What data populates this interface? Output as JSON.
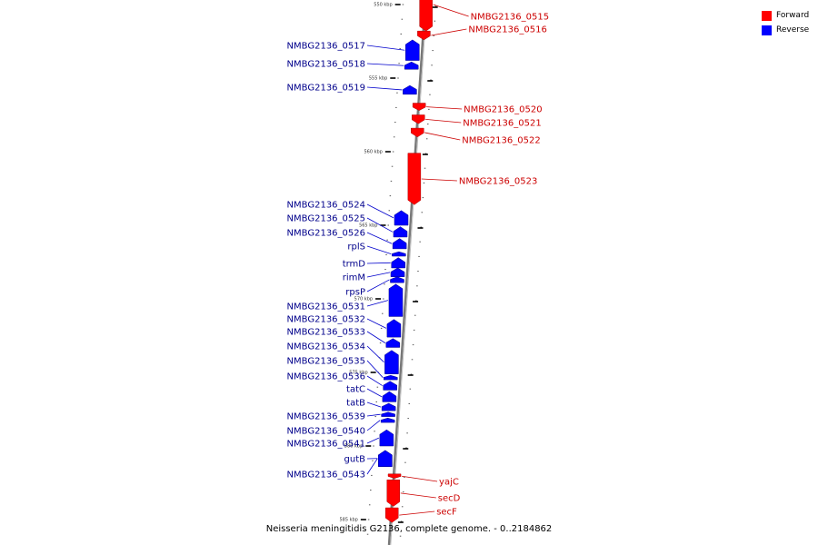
{
  "caption": "Neisseria meningitidis G2136, complete genome. - 0..2184862",
  "legend": [
    {
      "label": "Forward",
      "color": "#ff0000"
    },
    {
      "label": "Reverse",
      "color": "#0000ff"
    }
  ],
  "colors": {
    "forward": "#ff0000",
    "reverse": "#0000ff",
    "forward_label": "#cc0000",
    "reverse_label": "#00008b",
    "axis": "#888888"
  },
  "kbp_ticks": [
    {
      "kbp": 550,
      "label": "550 kbp"
    },
    {
      "kbp": 555,
      "label": "555 kbp"
    },
    {
      "kbp": 560,
      "label": "560 kbp"
    },
    {
      "kbp": 565,
      "label": "565 kbp"
    },
    {
      "kbp": 570,
      "label": "570 kbp"
    },
    {
      "kbp": 575,
      "label": "575 kbp"
    },
    {
      "kbp": 580,
      "label": "580 kbp"
    },
    {
      "kbp": 585,
      "label": "585 kbp"
    }
  ],
  "forward_genes": [
    {
      "name": "NMBG2136_0515",
      "start": 548.2,
      "end": 551.8
    },
    {
      "name": "NMBG2136_0516",
      "start": 551.8,
      "end": 552.4
    },
    {
      "name": "NMBG2136_0520",
      "start": 556.7,
      "end": 557.2
    },
    {
      "name": "NMBG2136_0521",
      "start": 557.5,
      "end": 558.1
    },
    {
      "name": "NMBG2136_0522",
      "start": 558.4,
      "end": 559.0
    },
    {
      "name": "NMBG2136_0523",
      "start": 560.1,
      "end": 563.6
    },
    {
      "name": "yajC",
      "start": 581.9,
      "end": 582.2
    },
    {
      "name": "secD",
      "start": 582.3,
      "end": 584.1
    },
    {
      "name": "secF",
      "start": 584.2,
      "end": 585.2
    }
  ],
  "reverse_genes": [
    {
      "name": "NMBG2136_0517",
      "start": 552.4,
      "end": 553.8
    },
    {
      "name": "NMBG2136_0518",
      "start": 553.9,
      "end": 554.4
    },
    {
      "name": "NMBG2136_0519",
      "start": 555.5,
      "end": 556.1
    },
    {
      "name": "NMBG2136_0524",
      "start": 564.0,
      "end": 565.0
    },
    {
      "name": "NMBG2136_0525",
      "start": 565.1,
      "end": 565.8
    },
    {
      "name": "NMBG2136_0526",
      "start": 565.9,
      "end": 566.6
    },
    {
      "name": "rplS",
      "start": 566.8,
      "end": 567.1
    },
    {
      "name": "trmD",
      "start": 567.2,
      "end": 567.9
    },
    {
      "name": "rimM",
      "start": 567.9,
      "end": 568.5
    },
    {
      "name": "rpsP",
      "start": 568.5,
      "end": 568.9
    },
    {
      "name": "NMBG2136_0531",
      "start": 569.0,
      "end": 571.2
    },
    {
      "name": "NMBG2136_0532",
      "start": 571.4,
      "end": 572.6
    },
    {
      "name": "NMBG2136_0533",
      "start": 572.7,
      "end": 573.3
    },
    {
      "name": "NMBG2136_0534",
      "start": 573.5,
      "end": 575.1
    },
    {
      "name": "NMBG2136_0535",
      "start": 575.2,
      "end": 575.5
    },
    {
      "name": "NMBG2136_0536",
      "start": 575.6,
      "end": 576.2
    },
    {
      "name": "tatC",
      "start": 576.3,
      "end": 577.0
    },
    {
      "name": "tatB",
      "start": 577.1,
      "end": 577.6
    },
    {
      "name": "NMBG2136_0539",
      "start": 577.7,
      "end": 578.0
    },
    {
      "name": "NMBG2136_0540",
      "start": 578.1,
      "end": 578.4
    },
    {
      "name": "NMBG2136_0541",
      "start": 578.9,
      "end": 580.0
    },
    {
      "name": "gutB",
      "start": 580.3,
      "end": 581.4
    },
    {
      "name": "NMBG2136_0543",
      "start": 580.3,
      "end": 581.4
    }
  ]
}
